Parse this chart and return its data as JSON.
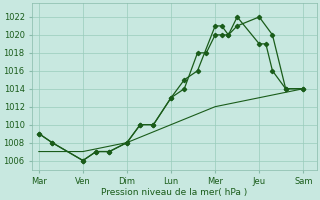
{
  "background_color": "#c8e8e0",
  "plot_bg_color": "#c8e8e0",
  "grid_color": "#99ccbb",
  "line_color": "#1a5c1a",
  "title": "Pression niveau de la mer( hPa )",
  "ylim": [
    1005,
    1023.5
  ],
  "yticks": [
    1006,
    1008,
    1010,
    1012,
    1014,
    1016,
    1018,
    1020,
    1022
  ],
  "xtick_positions": [
    0,
    1,
    2,
    3,
    4,
    5,
    6
  ],
  "xtick_labels": [
    "Mar",
    "Ven",
    "Dim",
    "Lun",
    "Mer",
    "Jeu",
    "Sam"
  ],
  "s1x": [
    0,
    0.3,
    1,
    1.3,
    1.6,
    2,
    2.3,
    2.6,
    3,
    3.3,
    3.6,
    4,
    4.15,
    4.3,
    4.5,
    5,
    5.3,
    5.6,
    6
  ],
  "s1y": [
    1009,
    1008,
    1006,
    1007,
    1007,
    1008,
    1010,
    1010,
    1013,
    1015,
    1016,
    1021,
    1021,
    1020,
    1021,
    1022,
    1020,
    1014,
    1014
  ],
  "s2x": [
    0,
    0.3,
    1,
    1.3,
    1.6,
    2,
    2.3,
    2.6,
    3,
    3.3,
    3.6,
    3.8,
    4,
    4.15,
    4.3,
    4.5,
    5,
    5.15,
    5.3,
    5.6,
    6
  ],
  "s2y": [
    1009,
    1008,
    1006,
    1007,
    1007,
    1008,
    1010,
    1010,
    1013,
    1014,
    1018,
    1018,
    1020,
    1020,
    1020,
    1022,
    1019,
    1019,
    1016,
    1014,
    1014
  ],
  "s3x": [
    0,
    1,
    2,
    3,
    4,
    5,
    6
  ],
  "s3y": [
    1007,
    1007,
    1008,
    1010,
    1012,
    1013,
    1014
  ]
}
